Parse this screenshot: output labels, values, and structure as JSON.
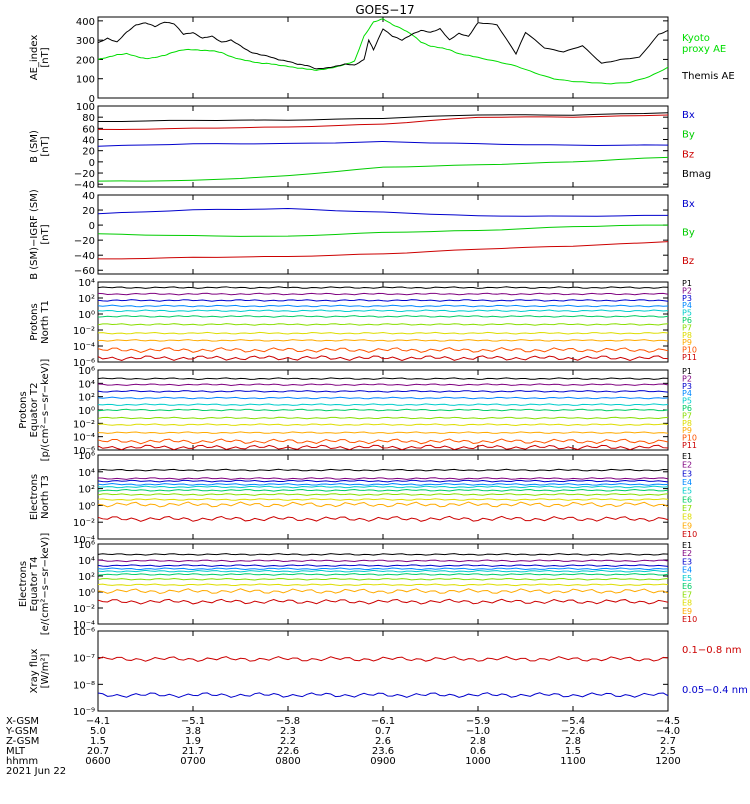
{
  "title": "GOES−17",
  "x_axis": {
    "categories": [
      "0600",
      "0700",
      "0800",
      "0900",
      "1000",
      "1100",
      "1200"
    ],
    "rows": [
      {
        "label": "X-GSM",
        "values": [
          "−4.1",
          "−5.1",
          "−5.8",
          "−6.1",
          "−5.9",
          "−5.4",
          "−4.5"
        ]
      },
      {
        "label": "Y-GSM",
        "values": [
          "5.0",
          "3.8",
          "2.3",
          "0.7",
          "−1.0",
          "−2.6",
          "−4.0"
        ]
      },
      {
        "label": "Z-GSM",
        "values": [
          "1.5",
          "1.9",
          "2.2",
          "2.6",
          "2.8",
          "2.8",
          "2.7"
        ]
      },
      {
        "label": "MLT",
        "values": [
          "20.7",
          "21.7",
          "22.6",
          "23.6",
          "0.6",
          "1.5",
          "2.5"
        ]
      },
      {
        "label": "hhmm",
        "values": [
          "0600",
          "0700",
          "0800",
          "0900",
          "1000",
          "1100",
          "1200"
        ]
      }
    ],
    "date": "2021 Jun 22"
  },
  "chart_data": [
    {
      "type": "line",
      "ylabel": "AE_index\n[nT]",
      "yticks": [
        "0",
        "100",
        "200",
        "300",
        "400"
      ],
      "ylim": [
        0,
        420
      ],
      "scale": "linear",
      "series": [
        {
          "name": "Kyoto\nproxy AE",
          "color": "#00dd00",
          "x": [
            0,
            0.1,
            0.2,
            0.3,
            0.4,
            0.5,
            0.6,
            0.7,
            0.8,
            0.9,
            1.0,
            1.1,
            1.2,
            1.3,
            1.4,
            1.5,
            1.6,
            1.7,
            1.8,
            1.9,
            2.0,
            2.1,
            2.2,
            2.3,
            2.4,
            2.5,
            2.6,
            2.7,
            2.8,
            2.9,
            3.0,
            3.1,
            3.2,
            3.3,
            3.4,
            3.5,
            3.6,
            3.7,
            3.8,
            3.9,
            4.0,
            4.2,
            4.4,
            4.6,
            4.8,
            5.0,
            5.2,
            5.4,
            5.6,
            5.8,
            6.0
          ],
          "y": [
            200,
            210,
            225,
            230,
            215,
            205,
            210,
            220,
            240,
            250,
            250,
            248,
            245,
            235,
            215,
            200,
            190,
            182,
            178,
            170,
            165,
            155,
            150,
            145,
            150,
            160,
            175,
            190,
            320,
            395,
            410,
            380,
            360,
            330,
            290,
            270,
            260,
            250,
            230,
            220,
            210,
            190,
            165,
            130,
            100,
            85,
            80,
            75,
            80,
            110,
            160
          ]
        },
        {
          "name": "Themis AE",
          "color": "#000000",
          "x": [
            0,
            0.1,
            0.2,
            0.3,
            0.4,
            0.5,
            0.6,
            0.7,
            0.8,
            0.9,
            1.0,
            1.1,
            1.2,
            1.3,
            1.4,
            1.5,
            1.6,
            1.7,
            1.8,
            1.9,
            2.0,
            2.1,
            2.2,
            2.3,
            2.4,
            2.5,
            2.6,
            2.7,
            2.8,
            2.85,
            2.9,
            3.0,
            3.1,
            3.2,
            3.3,
            3.4,
            3.5,
            3.6,
            3.7,
            3.8,
            3.9,
            4.0,
            4.2,
            4.4,
            4.5,
            4.7,
            4.9,
            5.1,
            5.3,
            5.5,
            5.7,
            5.9,
            6.0
          ],
          "y": [
            285,
            310,
            290,
            340,
            380,
            390,
            370,
            395,
            385,
            330,
            340,
            310,
            320,
            290,
            300,
            270,
            240,
            225,
            215,
            200,
            190,
            175,
            170,
            150,
            155,
            165,
            175,
            170,
            200,
            300,
            250,
            360,
            320,
            300,
            330,
            350,
            340,
            360,
            300,
            335,
            320,
            390,
            380,
            230,
            340,
            260,
            240,
            270,
            180,
            200,
            210,
            330,
            350
          ]
        }
      ]
    },
    {
      "type": "line",
      "ylabel": "B (SM)\n[nT]",
      "yticks": [
        "−40",
        "−20",
        "0",
        "20",
        "40",
        "60",
        "80",
        "100"
      ],
      "ylim": [
        -45,
        100
      ],
      "scale": "linear",
      "series": [
        {
          "name": "Bx",
          "color": "#0000cc",
          "x": [
            0,
            1,
            2,
            3,
            4,
            5,
            6
          ],
          "y": [
            28,
            32,
            33,
            36,
            32,
            30,
            30
          ]
        },
        {
          "name": "By",
          "color": "#00cc00",
          "x": [
            0,
            1,
            2,
            3,
            4,
            5,
            6
          ],
          "y": [
            -35,
            -33,
            -25,
            -10,
            -5,
            0,
            8
          ]
        },
        {
          "name": "Bz",
          "color": "#cc0000",
          "x": [
            0,
            1,
            2,
            3,
            4,
            5,
            6
          ],
          "y": [
            58,
            60,
            62,
            68,
            80,
            80,
            84
          ]
        },
        {
          "name": "Bmag",
          "color": "#000000",
          "x": [
            0,
            1,
            2,
            3,
            4,
            5,
            6
          ],
          "y": [
            72,
            74,
            75,
            78,
            84,
            84,
            88
          ]
        }
      ]
    },
    {
      "type": "line",
      "ylabel": "B (SM)−IGRF (SM)\n[nT]",
      "yticks": [
        "−60",
        "−40",
        "−20",
        "0",
        "20",
        "40"
      ],
      "ylim": [
        -65,
        40
      ],
      "scale": "linear",
      "series": [
        {
          "name": "Bx",
          "color": "#0000cc",
          "x": [
            0,
            1,
            2,
            3,
            4,
            5,
            6
          ],
          "y": [
            15,
            20,
            22,
            17,
            12,
            12,
            13
          ]
        },
        {
          "name": "By",
          "color": "#00cc00",
          "x": [
            0,
            1,
            2,
            3,
            4,
            5,
            6
          ],
          "y": [
            -12,
            -14,
            -15,
            -10,
            -7,
            -2,
            0
          ]
        },
        {
          "name": "Bz",
          "color": "#cc0000",
          "x": [
            0,
            1,
            2,
            3,
            4,
            5,
            6
          ],
          "y": [
            -45,
            -43,
            -42,
            -38,
            -32,
            -28,
            -22
          ]
        }
      ]
    },
    {
      "type": "line",
      "ylabel": "Protons\nNorth T1",
      "yticks": [
        "10⁻⁶",
        "10⁻⁴",
        "10⁻²",
        "10⁰",
        "10²",
        "10⁴"
      ],
      "ylim": [
        -6,
        4
      ],
      "scale": "log",
      "series": [
        {
          "name": "P1",
          "color": "#000000",
          "level": 3.3
        },
        {
          "name": "P2",
          "color": "#7f007f",
          "level": 2.5
        },
        {
          "name": "P3",
          "color": "#0000cc",
          "level": 1.7
        },
        {
          "name": "P4",
          "color": "#0088ff",
          "level": 1.0
        },
        {
          "name": "P5",
          "color": "#00cccc",
          "level": 0.4
        },
        {
          "name": "P6",
          "color": "#00cc66",
          "level": -0.3
        },
        {
          "name": "P7",
          "color": "#88dd00",
          "level": -1.3
        },
        {
          "name": "P8",
          "color": "#dddd00",
          "level": -2.4
        },
        {
          "name": "P9",
          "color": "#ffaa00",
          "level": -3.3
        },
        {
          "name": "P10",
          "color": "#ff5500",
          "level": -4.5
        },
        {
          "name": "P11",
          "color": "#cc0000",
          "level": -5.5
        }
      ]
    },
    {
      "type": "line",
      "ylabel": "Protons\nEquator T2\n[p/(cm²−s−sr−keV)]",
      "yticks": [
        "10⁻⁶",
        "10⁻⁴",
        "10⁻²",
        "10⁰",
        "10²",
        "10⁴",
        "10⁶"
      ],
      "ylim": [
        -6,
        6
      ],
      "scale": "log",
      "series": [
        {
          "name": "P1",
          "color": "#000000",
          "level": 4.7
        },
        {
          "name": "P2",
          "color": "#7f007f",
          "level": 3.8
        },
        {
          "name": "P3",
          "color": "#0000cc",
          "level": 2.8
        },
        {
          "name": "P4",
          "color": "#0088ff",
          "level": 1.8
        },
        {
          "name": "P5",
          "color": "#00cccc",
          "level": 0.8
        },
        {
          "name": "P6",
          "color": "#00cc66",
          "level": 0.0
        },
        {
          "name": "P7",
          "color": "#88dd00",
          "level": -1.2
        },
        {
          "name": "P8",
          "color": "#dddd00",
          "level": -2.2
        },
        {
          "name": "P9",
          "color": "#ffaa00",
          "level": -3.4
        },
        {
          "name": "P10",
          "color": "#ff5500",
          "level": -4.7
        },
        {
          "name": "P11",
          "color": "#cc0000",
          "level": -5.6
        }
      ]
    },
    {
      "type": "line",
      "ylabel": "Electrons\nNorth T3",
      "yticks": [
        "10⁻⁴",
        "10⁻²",
        "10⁰",
        "10²",
        "10⁴",
        "10⁶"
      ],
      "ylim": [
        -4,
        6
      ],
      "scale": "log",
      "series": [
        {
          "name": "E1",
          "color": "#000000",
          "level": 4.2
        },
        {
          "name": "E2",
          "color": "#7f007f",
          "level": 3.2
        },
        {
          "name": "E3",
          "color": "#0000cc",
          "level": 2.9
        },
        {
          "name": "E4",
          "color": "#0088ff",
          "level": 2.5
        },
        {
          "name": "E5",
          "color": "#00cccc",
          "level": 2.2
        },
        {
          "name": "E6",
          "color": "#00cc66",
          "level": 1.8
        },
        {
          "name": "E7",
          "color": "#88dd00",
          "level": 1.3
        },
        {
          "name": "E8",
          "color": "#dddd00",
          "level": 0.7
        },
        {
          "name": "E9",
          "color": "#ffaa00",
          "level": 0.1
        },
        {
          "name": "E10",
          "color": "#cc0000",
          "level": -1.6
        }
      ]
    },
    {
      "type": "line",
      "ylabel": "Electrons\nEquator T4\n[e/(cm²−s−sr−keV)]",
      "yticks": [
        "10⁻⁴",
        "10⁻²",
        "10⁰",
        "10²",
        "10⁴",
        "10⁶"
      ],
      "ylim": [
        -4,
        6
      ],
      "scale": "log",
      "series": [
        {
          "name": "E1",
          "color": "#000000",
          "level": 4.7
        },
        {
          "name": "E2",
          "color": "#7f007f",
          "level": 3.9
        },
        {
          "name": "E3",
          "color": "#0000cc",
          "level": 3.3
        },
        {
          "name": "E4",
          "color": "#0088ff",
          "level": 2.9
        },
        {
          "name": "E5",
          "color": "#00cccc",
          "level": 2.6
        },
        {
          "name": "E6",
          "color": "#00cc66",
          "level": 2.2
        },
        {
          "name": "E7",
          "color": "#88dd00",
          "level": 1.6
        },
        {
          "name": "E8",
          "color": "#dddd00",
          "level": 0.9
        },
        {
          "name": "E9",
          "color": "#ffaa00",
          "level": 0.1
        },
        {
          "name": "E10",
          "color": "#cc0000",
          "level": -1.2
        }
      ]
    },
    {
      "type": "line",
      "ylabel": "Xray flux\n[W/m²]",
      "yticks": [
        "10⁻⁹",
        "10⁻⁸",
        "10⁻⁷",
        "10⁻⁶"
      ],
      "ylim": [
        -9,
        -6
      ],
      "scale": "log",
      "series": [
        {
          "name": "0.1−0.8 nm",
          "color": "#cc0000",
          "level": -7.05
        },
        {
          "name": "0.05−0.4 nm",
          "color": "#0000cc",
          "level": -8.4
        }
      ]
    }
  ]
}
